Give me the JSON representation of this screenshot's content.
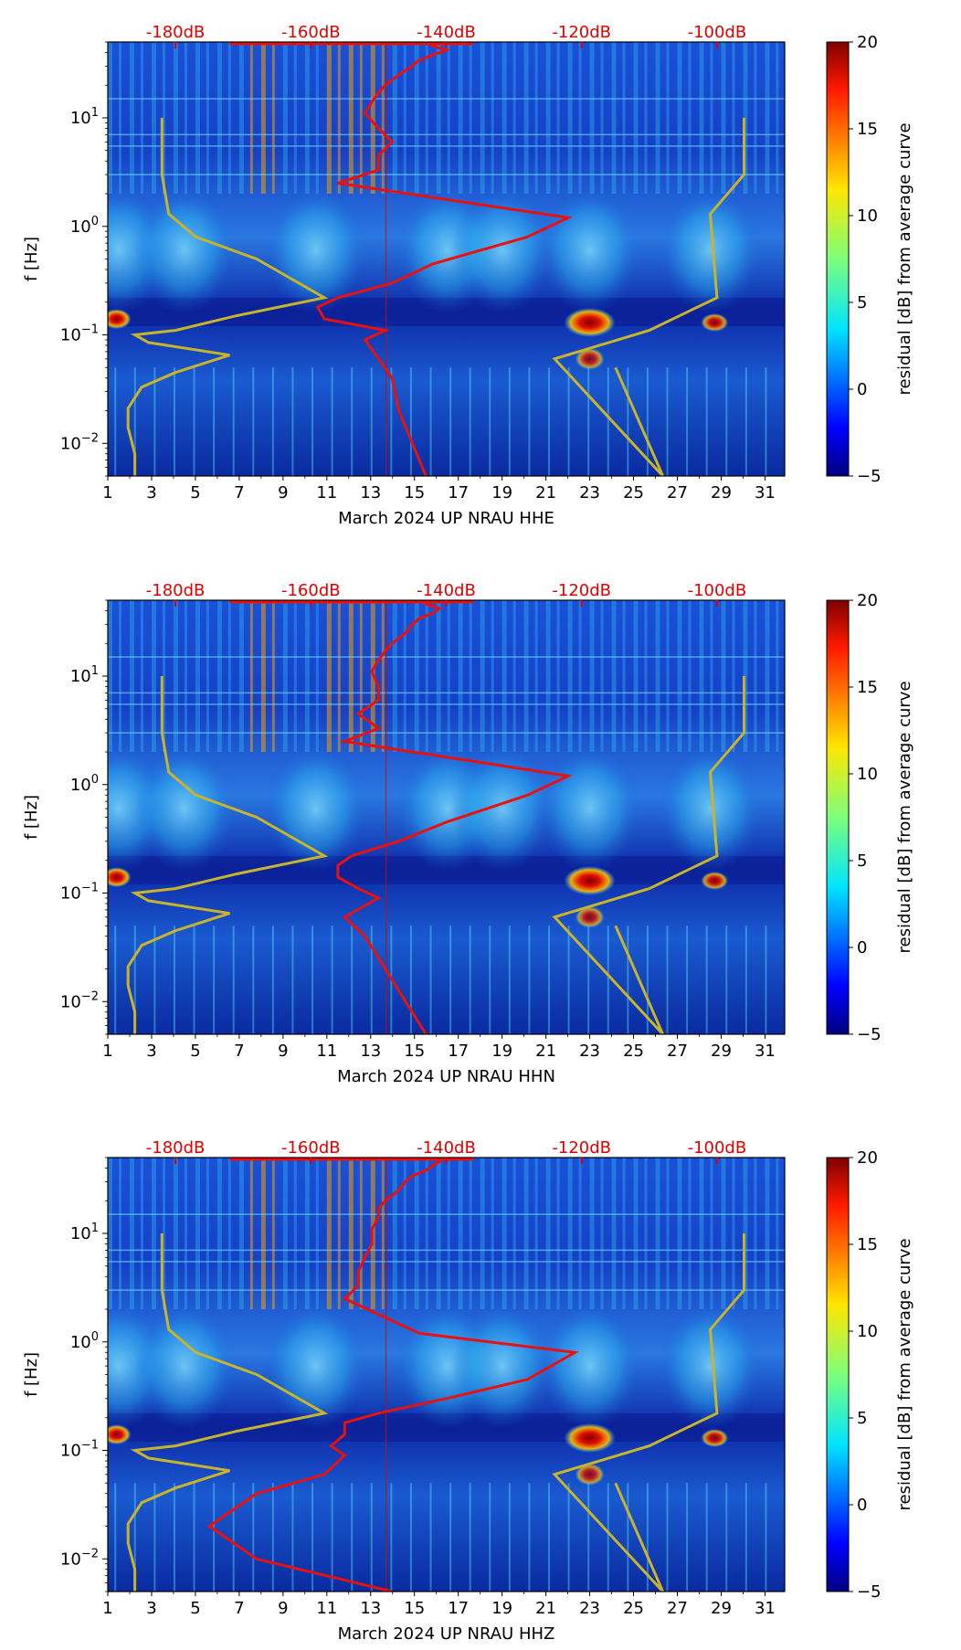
{
  "colors": {
    "red_curve": "#e8110f",
    "yellow_curve": "#c8b42a",
    "background_field": "#0a1fb0",
    "top_axis_text": "#e00000"
  },
  "chart_data": [
    {
      "type": "heatmap",
      "title": "",
      "xlabel": "March 2024 UP NRAU  HHE",
      "ylabel": "f [Hz]",
      "colorbar_label": "residual [dB] from average curve",
      "x_ticks": [
        "1",
        "3",
        "5",
        "7",
        "9",
        "11",
        "13",
        "15",
        "17",
        "19",
        "21",
        "23",
        "25",
        "27",
        "29",
        "31"
      ],
      "xlim": [
        1,
        31.9
      ],
      "ylim_hz": [
        0.005,
        50
      ],
      "y_ticks": [
        {
          "value": 0.01,
          "base": "10",
          "exp": "−2"
        },
        {
          "value": 0.1,
          "base": "10",
          "exp": "−1"
        },
        {
          "value": 1,
          "base": "10",
          "exp": "0"
        },
        {
          "value": 10,
          "base": "10",
          "exp": "1"
        }
      ],
      "top_axis_ticks": [
        "-180dB",
        "-160dB",
        "-140dB",
        "-120dB",
        "-100dB"
      ],
      "top_axis_range_db": [
        -190,
        -90
      ],
      "colorbar_ticks": [
        "20",
        "15",
        "10",
        "5",
        "0",
        "−5"
      ],
      "colorbar_range": [
        -5,
        20
      ],
      "series": [
        {
          "name": "red_psd_curve",
          "db": [
            -143,
            -145,
            -147,
            -148,
            -150,
            -152,
            -149,
            -158,
            -159,
            -156,
            -148,
            -142,
            -128,
            -122,
            -156,
            -150,
            -150,
            -148,
            -150,
            -152,
            -151,
            -150,
            -149,
            -147,
            -145,
            -144,
            -142,
            -140,
            -142,
            -143
          ],
          "hz": [
            0.005,
            0.01,
            0.02,
            0.04,
            0.06,
            0.09,
            0.11,
            0.14,
            0.18,
            0.22,
            0.3,
            0.45,
            0.8,
            1.2,
            2.5,
            3.3,
            4.5,
            6,
            8,
            11,
            14,
            17,
            20,
            25,
            30,
            34,
            38,
            42,
            46,
            50
          ]
        },
        {
          "name": "yellow_curve",
          "db": [
            -186,
            -186,
            -187,
            -187,
            -185,
            -180,
            -172,
            -184,
            -186,
            -180,
            -171,
            -158,
            -168,
            -177,
            -181,
            -182,
            -182,
            -115,
            -108,
            -124,
            -110,
            -100,
            -101,
            -96,
            -96
          ],
          "hz": [
            0.005,
            0.008,
            0.014,
            0.021,
            0.033,
            0.045,
            0.065,
            0.085,
            0.1,
            0.11,
            0.15,
            0.22,
            0.5,
            0.8,
            1.3,
            3,
            10,
            0.05,
            0.005,
            0.06,
            0.11,
            0.22,
            1.3,
            3,
            10
          ]
        }
      ]
    },
    {
      "type": "heatmap",
      "xlabel": "March 2024 UP NRAU  HHN",
      "ylabel": "f [Hz]",
      "colorbar_label": "residual [dB] from average curve",
      "x_ticks": [
        "1",
        "3",
        "5",
        "7",
        "9",
        "11",
        "13",
        "15",
        "17",
        "19",
        "21",
        "23",
        "25",
        "27",
        "29",
        "31"
      ],
      "xlim": [
        1,
        31.9
      ],
      "ylim_hz": [
        0.005,
        50
      ],
      "y_ticks": [
        {
          "value": 0.01,
          "base": "10",
          "exp": "−2"
        },
        {
          "value": 0.1,
          "base": "10",
          "exp": "−1"
        },
        {
          "value": 1,
          "base": "10",
          "exp": "0"
        },
        {
          "value": 10,
          "base": "10",
          "exp": "1"
        }
      ],
      "top_axis_ticks": [
        "-180dB",
        "-160dB",
        "-140dB",
        "-120dB",
        "-100dB"
      ],
      "top_axis_range_db": [
        -190,
        -90
      ],
      "colorbar_ticks": [
        "20",
        "15",
        "10",
        "5",
        "0",
        "−5"
      ],
      "colorbar_range": [
        -5,
        20
      ],
      "series": [
        {
          "name": "red_psd_curve",
          "db": [
            -143,
            -146,
            -149,
            -152,
            -155,
            -150,
            -153,
            -156,
            -156,
            -154,
            -147,
            -140,
            -128,
            -122,
            -155,
            -150,
            -153,
            -150,
            -150,
            -151,
            -150,
            -149,
            -148,
            -146,
            -145,
            -144,
            -142,
            -141,
            -143,
            -144
          ],
          "hz": [
            0.005,
            0.01,
            0.02,
            0.04,
            0.06,
            0.09,
            0.11,
            0.14,
            0.18,
            0.22,
            0.3,
            0.45,
            0.8,
            1.2,
            2.5,
            3.3,
            4.5,
            6,
            8,
            11,
            14,
            17,
            20,
            25,
            30,
            34,
            38,
            42,
            46,
            50
          ]
        },
        {
          "name": "yellow_curve",
          "db": [
            -186,
            -186,
            -187,
            -187,
            -185,
            -180,
            -172,
            -184,
            -186,
            -180,
            -171,
            -158,
            -168,
            -177,
            -181,
            -182,
            -182,
            -115,
            -108,
            -124,
            -110,
            -100,
            -101,
            -96,
            -96
          ],
          "hz": [
            0.005,
            0.008,
            0.014,
            0.021,
            0.033,
            0.045,
            0.065,
            0.085,
            0.1,
            0.11,
            0.15,
            0.22,
            0.5,
            0.8,
            1.3,
            3,
            10,
            0.05,
            0.005,
            0.06,
            0.11,
            0.22,
            1.3,
            3,
            10
          ]
        }
      ]
    },
    {
      "type": "heatmap",
      "xlabel": "March 2024 UP NRAU  HHZ",
      "ylabel": "f [Hz]",
      "colorbar_label": "residual [dB] from average curve",
      "x_ticks": [
        "1",
        "3",
        "5",
        "7",
        "9",
        "11",
        "13",
        "15",
        "17",
        "19",
        "21",
        "23",
        "25",
        "27",
        "29",
        "31"
      ],
      "xlim": [
        1,
        31.9
      ],
      "ylim_hz": [
        0.005,
        50
      ],
      "y_ticks": [
        {
          "value": 0.01,
          "base": "10",
          "exp": "−2"
        },
        {
          "value": 0.1,
          "base": "10",
          "exp": "−1"
        },
        {
          "value": 1,
          "base": "10",
          "exp": "0"
        },
        {
          "value": 10,
          "base": "10",
          "exp": "1"
        }
      ],
      "top_axis_ticks": [
        "-180dB",
        "-160dB",
        "-140dB",
        "-120dB",
        "-100dB"
      ],
      "top_axis_range_db": [
        -190,
        -90
      ],
      "colorbar_ticks": [
        "20",
        "15",
        "10",
        "5",
        "0",
        "−5"
      ],
      "colorbar_range": [
        -5,
        20
      ],
      "series": [
        {
          "name": "red_psd_curve",
          "db": [
            -148,
            -168,
            -175,
            -168,
            -158,
            -155,
            -157,
            -155,
            -155,
            -150,
            -140,
            -128,
            -121,
            -144,
            -155,
            -153,
            -153,
            -152,
            -151,
            -151,
            -150,
            -150,
            -149,
            -147,
            -146,
            -145,
            -143,
            -142,
            -141,
            -142
          ],
          "hz": [
            0.005,
            0.01,
            0.02,
            0.04,
            0.06,
            0.09,
            0.11,
            0.14,
            0.18,
            0.22,
            0.3,
            0.45,
            0.8,
            1.2,
            2.5,
            3.3,
            4.5,
            6,
            8,
            11,
            14,
            17,
            20,
            25,
            30,
            34,
            38,
            42,
            46,
            50
          ]
        },
        {
          "name": "yellow_curve",
          "db": [
            -186,
            -186,
            -187,
            -187,
            -185,
            -180,
            -172,
            -184,
            -186,
            -180,
            -171,
            -158,
            -168,
            -177,
            -181,
            -182,
            -182,
            -115,
            -108,
            -124,
            -110,
            -100,
            -101,
            -96,
            -96
          ],
          "hz": [
            0.005,
            0.008,
            0.014,
            0.021,
            0.033,
            0.045,
            0.065,
            0.085,
            0.1,
            0.11,
            0.15,
            0.22,
            0.5,
            0.8,
            1.3,
            3,
            10,
            0.05,
            0.005,
            0.06,
            0.11,
            0.22,
            1.3,
            3,
            10
          ]
        }
      ]
    }
  ]
}
